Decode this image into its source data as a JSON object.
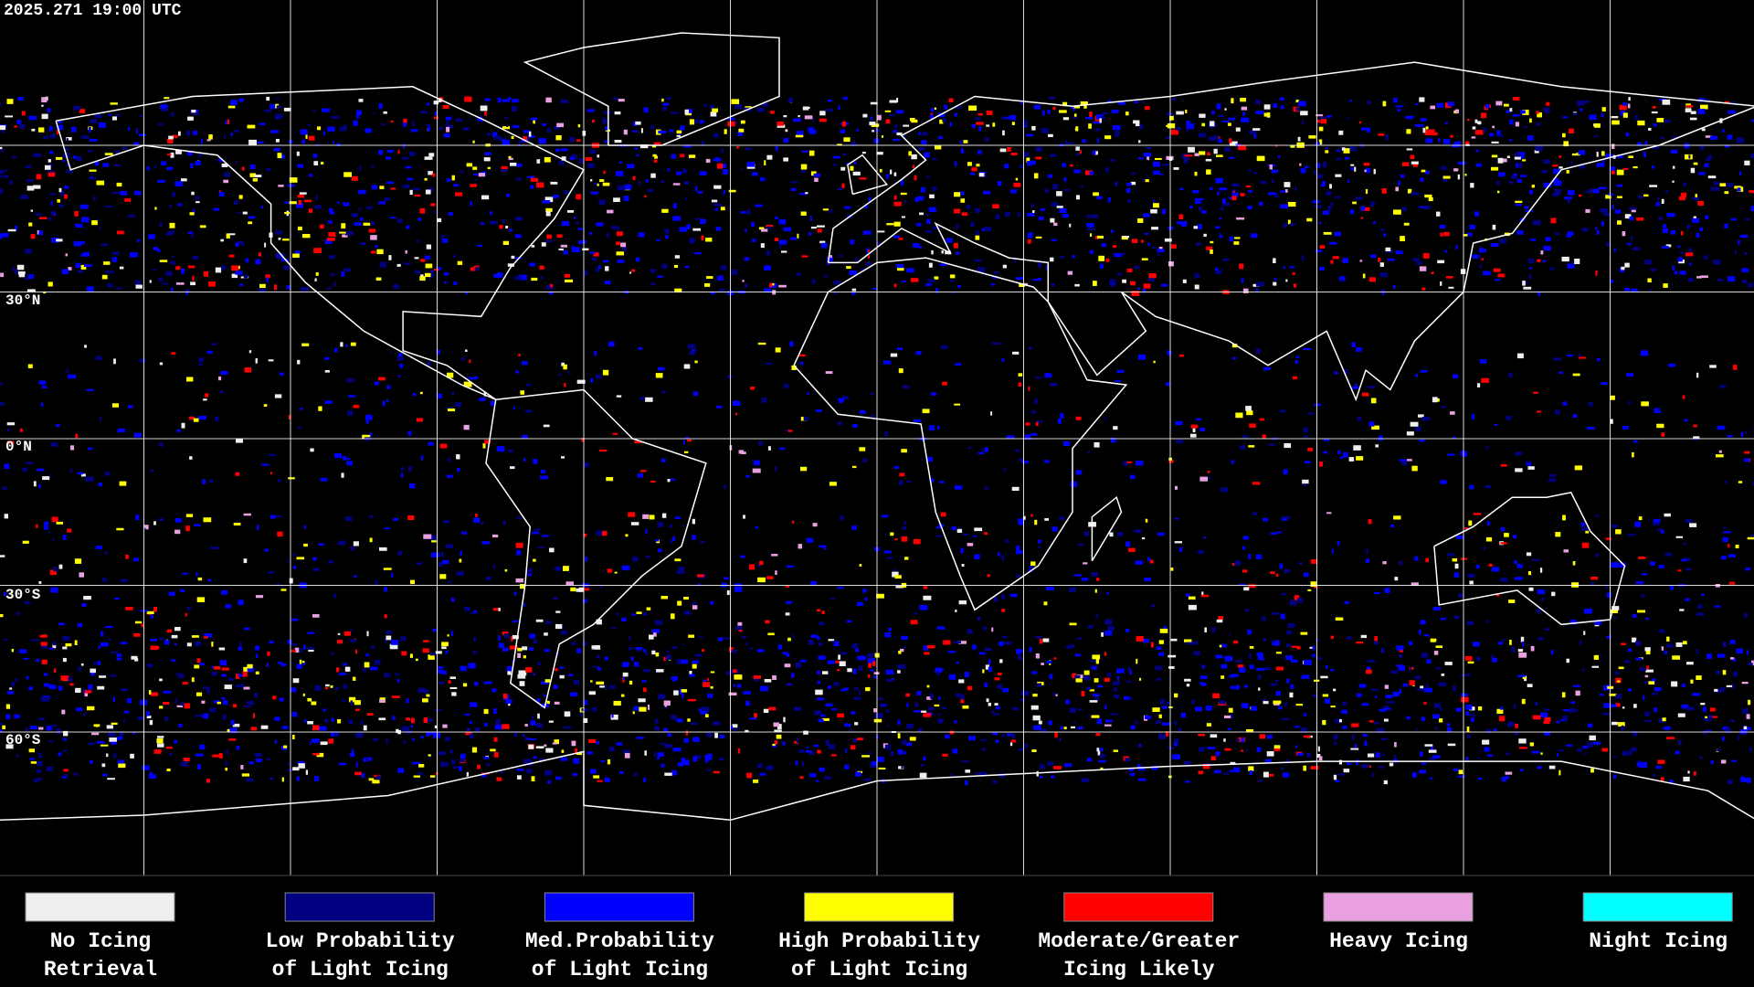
{
  "header": {
    "timestamp": "2025.271 19:00 UTC"
  },
  "map": {
    "latitude_labels": [
      "30°N",
      "0°N",
      "30°S",
      "60°S"
    ]
  },
  "legend": {
    "items": [
      {
        "lines": [
          "No Icing",
          "Retrieval"
        ],
        "color": "#eeeeee"
      },
      {
        "lines": [
          "Low Probability",
          "of Light Icing"
        ],
        "color": "#000080"
      },
      {
        "lines": [
          "Med.Probability",
          "of Light Icing"
        ],
        "color": "#0000ff"
      },
      {
        "lines": [
          "High Probability",
          "of Light Icing"
        ],
        "color": "#ffff00"
      },
      {
        "lines": [
          "Moderate/Greater",
          "Icing Likely"
        ],
        "color": "#ff0000"
      },
      {
        "lines": [
          "Heavy Icing"
        ],
        "color": "#e8a0e0"
      },
      {
        "lines": [
          "Night Icing"
        ],
        "color": "#00ffff"
      }
    ]
  }
}
